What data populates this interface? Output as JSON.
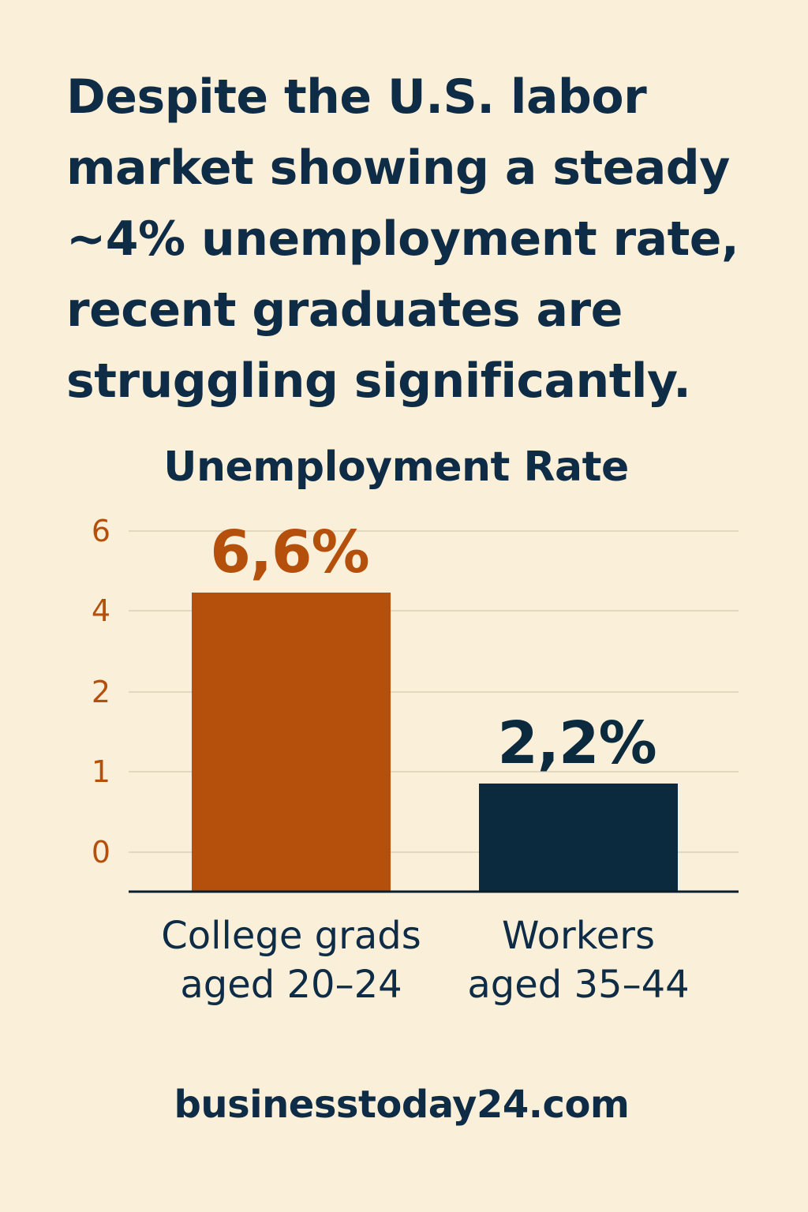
{
  "headline": "Despite the U.S. labor market showing a steady ~4% unemployment rate, recent graduates are struggling significantly.",
  "source": "businesstoday24.com",
  "colors": {
    "background": "#faf0da",
    "accent": "#b5500c",
    "dark": "#0b2a3d",
    "text": "#0f2c47"
  },
  "chart_data": {
    "type": "bar",
    "title": "Unemployment Rate",
    "categories": [
      {
        "line1": "College grads",
        "line2": "aged 20–24"
      },
      {
        "line1": "Workers",
        "line2": "aged 35–44"
      }
    ],
    "values": [
      6.6,
      2.2
    ],
    "data_labels": [
      "6,6%",
      "2,2%"
    ],
    "bar_colors": [
      "#b5500c",
      "#0b2a3d"
    ],
    "label_colors": [
      "#b5500c",
      "#0b2a3d"
    ],
    "yticks": [
      "6",
      "4",
      "2",
      "1",
      "0"
    ],
    "grid": true
  }
}
